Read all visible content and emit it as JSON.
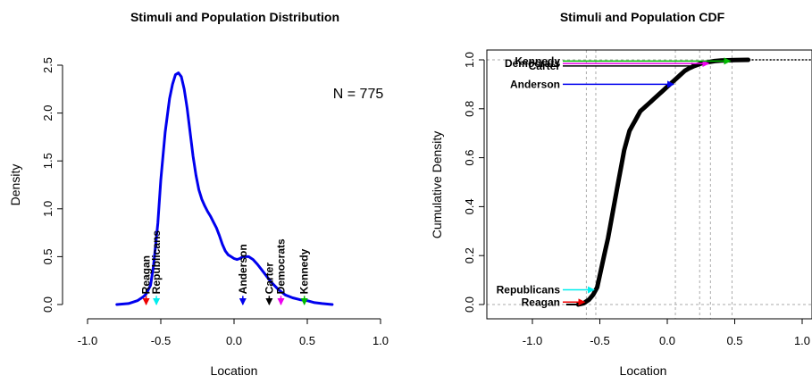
{
  "chart_data": [
    {
      "type": "line",
      "title": "Stimuli and Population Distribution",
      "xlabel": "Location",
      "ylabel": "Density",
      "xlim": [
        -1.0,
        1.0
      ],
      "ylim": [
        0,
        2.5
      ],
      "xticks": [
        "-1.0",
        "-0.5",
        "0.0",
        "0.5",
        "1.0"
      ],
      "yticks": [
        "0.0",
        "0.5",
        "1.0",
        "1.5",
        "2.0",
        "2.5"
      ],
      "annotation": "N = 775",
      "series": [
        {
          "color": "#0000ee",
          "x": [
            -0.8,
            -0.72,
            -0.66,
            -0.62,
            -0.6,
            -0.57,
            -0.55,
            -0.52,
            -0.5,
            -0.47,
            -0.44,
            -0.42,
            -0.4,
            -0.38,
            -0.36,
            -0.34,
            -0.32,
            -0.3,
            -0.28,
            -0.26,
            -0.24,
            -0.22,
            -0.2,
            -0.18,
            -0.16,
            -0.14,
            -0.12,
            -0.1,
            -0.08,
            -0.06,
            -0.04,
            -0.02,
            0.0,
            0.02,
            0.04,
            0.06,
            0.08,
            0.1,
            0.13,
            0.16,
            0.19,
            0.22,
            0.25,
            0.3,
            0.35,
            0.4,
            0.45,
            0.5,
            0.55,
            0.6,
            0.67
          ],
          "y": [
            0.0,
            0.01,
            0.04,
            0.08,
            0.11,
            0.2,
            0.4,
            0.85,
            1.3,
            1.8,
            2.15,
            2.3,
            2.4,
            2.42,
            2.38,
            2.25,
            2.05,
            1.8,
            1.55,
            1.35,
            1.2,
            1.1,
            1.03,
            0.97,
            0.92,
            0.86,
            0.8,
            0.72,
            0.63,
            0.56,
            0.52,
            0.5,
            0.48,
            0.47,
            0.48,
            0.5,
            0.5,
            0.5,
            0.47,
            0.42,
            0.36,
            0.3,
            0.24,
            0.16,
            0.1,
            0.07,
            0.05,
            0.04,
            0.02,
            0.01,
            0.0
          ]
        }
      ],
      "stimuli": [
        {
          "name": "Reagan",
          "x": -0.6,
          "color": "#ee0000"
        },
        {
          "name": "Republicans",
          "x": -0.53,
          "color": "#00eeee"
        },
        {
          "name": "Anderson",
          "x": 0.06,
          "color": "#0000ee"
        },
        {
          "name": "Carter",
          "x": 0.24,
          "color": "#000000"
        },
        {
          "name": "Democrats",
          "x": 0.32,
          "color": "#ee00ee"
        },
        {
          "name": "Kennedy",
          "x": 0.48,
          "color": "#00bb00"
        }
      ]
    },
    {
      "type": "line",
      "title": "Stimuli and Population CDF",
      "xlabel": "Location",
      "ylabel": "Cumulative Density",
      "xlim": [
        -1.0,
        1.0
      ],
      "ylim": [
        0,
        1.0
      ],
      "xticks": [
        "-1.0",
        "-0.5",
        "0.0",
        "0.5",
        "1.0"
      ],
      "yticks": [
        "0.0",
        "0.2",
        "0.4",
        "0.6",
        "0.8",
        "1.0"
      ],
      "series": [
        {
          "color": "#000000",
          "x": [
            -0.66,
            -0.62,
            -0.58,
            -0.55,
            -0.52,
            -0.5,
            -0.48,
            -0.46,
            -0.44,
            -0.42,
            -0.4,
            -0.38,
            -0.36,
            -0.34,
            -0.32,
            -0.3,
            -0.28,
            -0.26,
            -0.24,
            -0.22,
            -0.2,
            -0.18,
            -0.16,
            -0.14,
            -0.12,
            -0.1,
            -0.08,
            -0.06,
            -0.04,
            -0.02,
            0.0,
            0.03,
            0.06,
            0.1,
            0.13,
            0.16,
            0.2,
            0.25,
            0.3,
            0.35,
            0.4,
            0.45,
            0.5,
            0.6
          ],
          "y": [
            0.0,
            0.005,
            0.02,
            0.04,
            0.07,
            0.12,
            0.17,
            0.22,
            0.27,
            0.33,
            0.39,
            0.45,
            0.51,
            0.57,
            0.63,
            0.67,
            0.71,
            0.73,
            0.75,
            0.77,
            0.79,
            0.8,
            0.81,
            0.82,
            0.83,
            0.84,
            0.85,
            0.86,
            0.87,
            0.88,
            0.89,
            0.905,
            0.92,
            0.94,
            0.955,
            0.965,
            0.975,
            0.985,
            0.99,
            0.995,
            0.997,
            0.998,
            0.999,
            1.0
          ]
        }
      ],
      "stimuli": [
        {
          "name": "Reagan",
          "x": -0.6,
          "cdf": 0.01,
          "color": "#ee0000"
        },
        {
          "name": "Republicans",
          "x": -0.53,
          "cdf": 0.06,
          "color": "#00eeee"
        },
        {
          "name": "Anderson",
          "x": 0.06,
          "cdf": 0.9,
          "color": "#0000ee"
        },
        {
          "name": "Carter",
          "x": 0.24,
          "cdf": 0.975,
          "color": "#000000"
        },
        {
          "name": "Democrats",
          "x": 0.32,
          "cdf": 0.985,
          "color": "#ee00ee"
        },
        {
          "name": "Kennedy",
          "x": 0.48,
          "cdf": 0.995,
          "color": "#00bb00"
        }
      ]
    }
  ]
}
